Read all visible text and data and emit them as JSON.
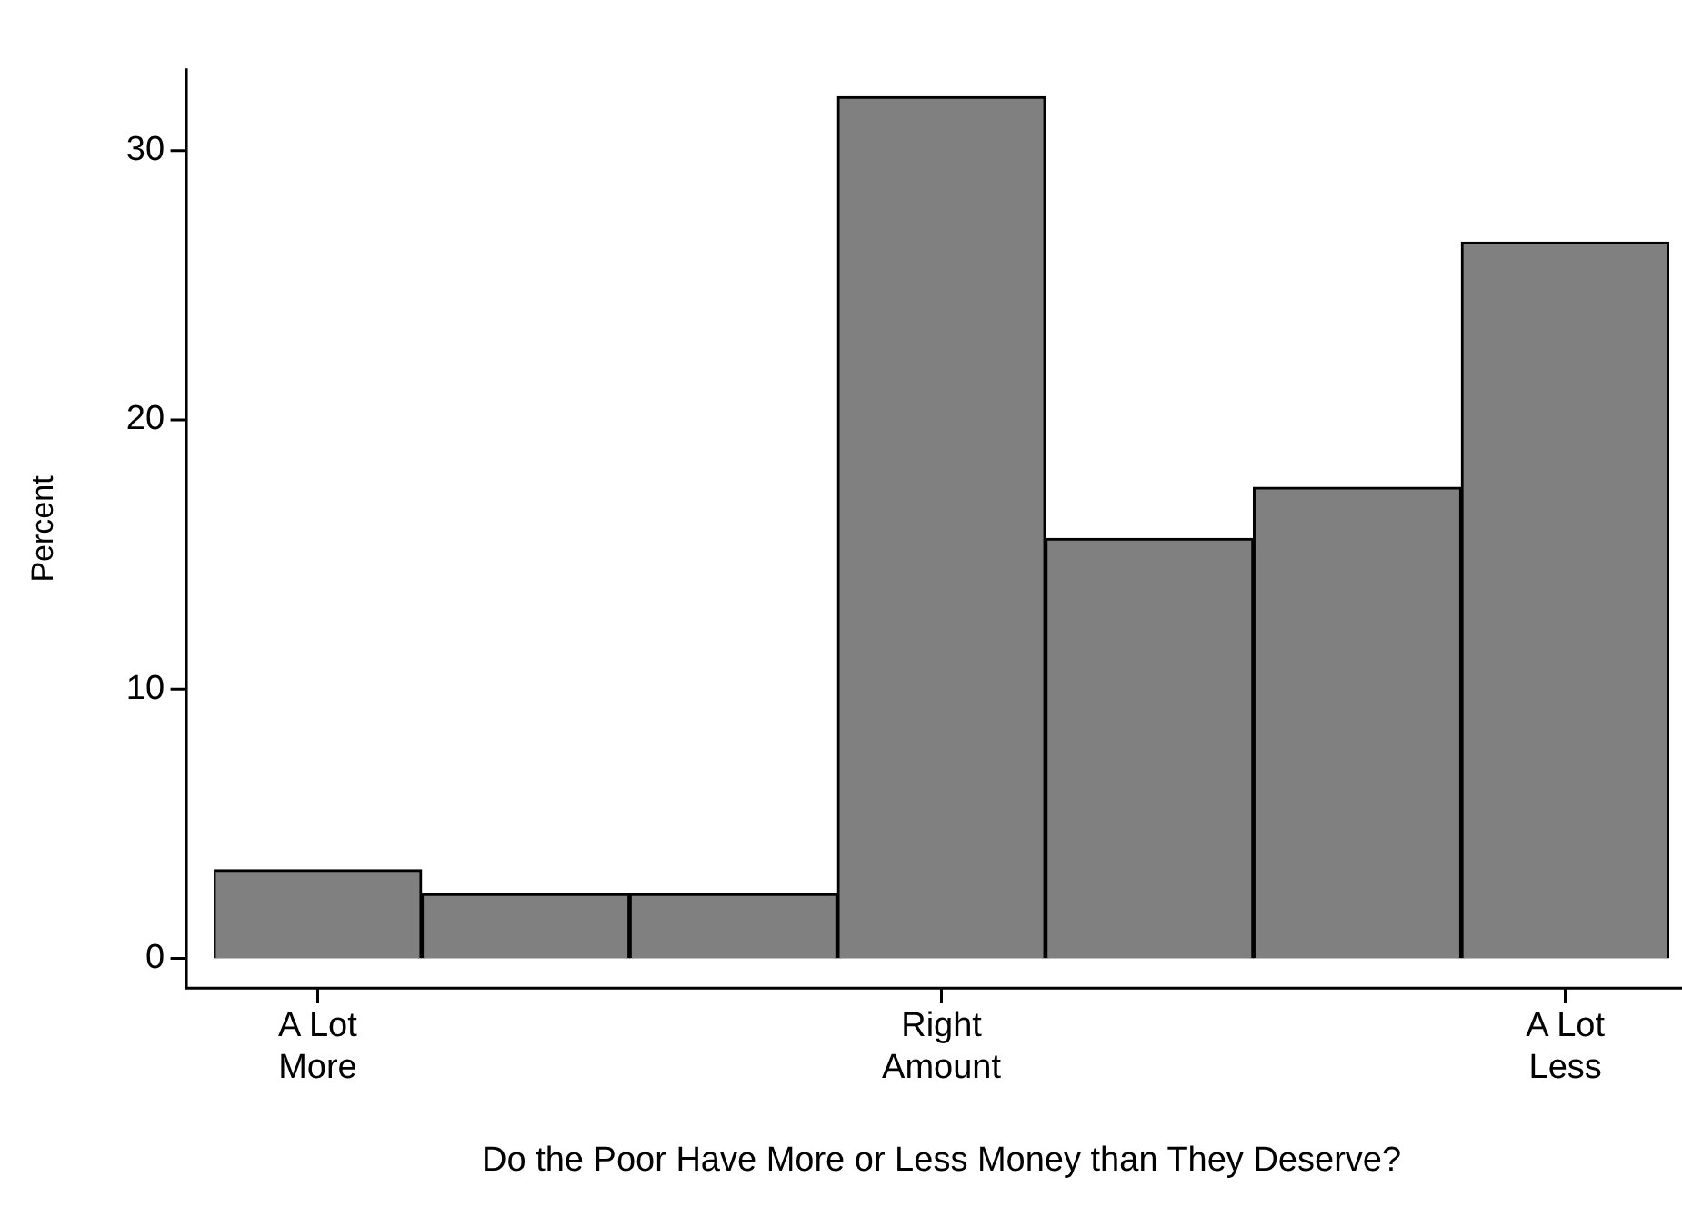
{
  "chart_data": {
    "type": "bar",
    "xlabel": "Do the Poor Have More or Less Money than They Deserve?",
    "ylabel": "Percent",
    "categories": [
      "A Lot\nMore",
      null,
      null,
      "Right\nAmount",
      null,
      null,
      "A Lot\nLess"
    ],
    "values": [
      3.3,
      2.4,
      2.4,
      32.0,
      15.6,
      17.5,
      26.6
    ],
    "color": "#808080",
    "ylim": [
      -1.1,
      33
    ],
    "yticks": [
      0,
      10,
      20,
      30
    ],
    "grid": false,
    "legend": false
  }
}
